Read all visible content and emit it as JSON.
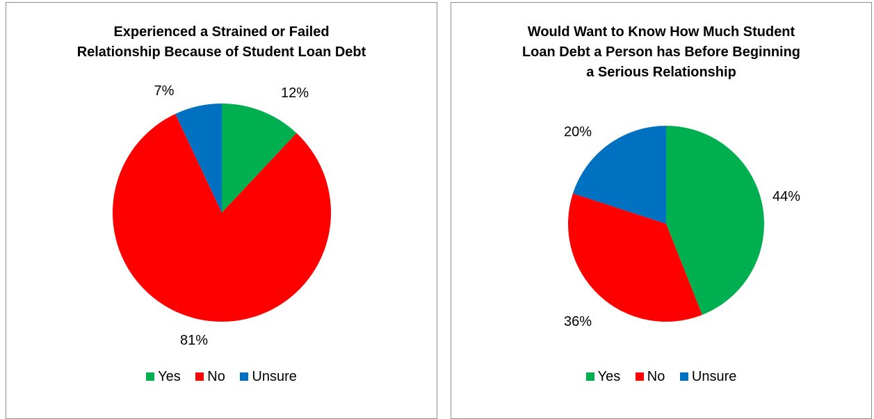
{
  "colors": {
    "yes": "#00b050",
    "no": "#ff0000",
    "unsure": "#0070c0"
  },
  "chart_data": [
    {
      "type": "pie",
      "title": [
        "Experienced a Strained or Failed",
        "Relationship Because of Student Loan Debt"
      ],
      "categories": [
        "Yes",
        "No",
        "Unsure"
      ],
      "values": [
        12,
        81,
        7
      ],
      "labels": [
        "12%",
        "81%",
        "7%"
      ],
      "legend_position": "bottom"
    },
    {
      "type": "pie",
      "title": [
        "Would Want to Know How Much Student",
        "Loan Debt a Person has Before Beginning",
        "a Serious Relationship"
      ],
      "categories": [
        "Yes",
        "No",
        "Unsure"
      ],
      "values": [
        44,
        36,
        20
      ],
      "labels": [
        "44%",
        "36%",
        "20%"
      ],
      "legend_position": "bottom"
    }
  ]
}
